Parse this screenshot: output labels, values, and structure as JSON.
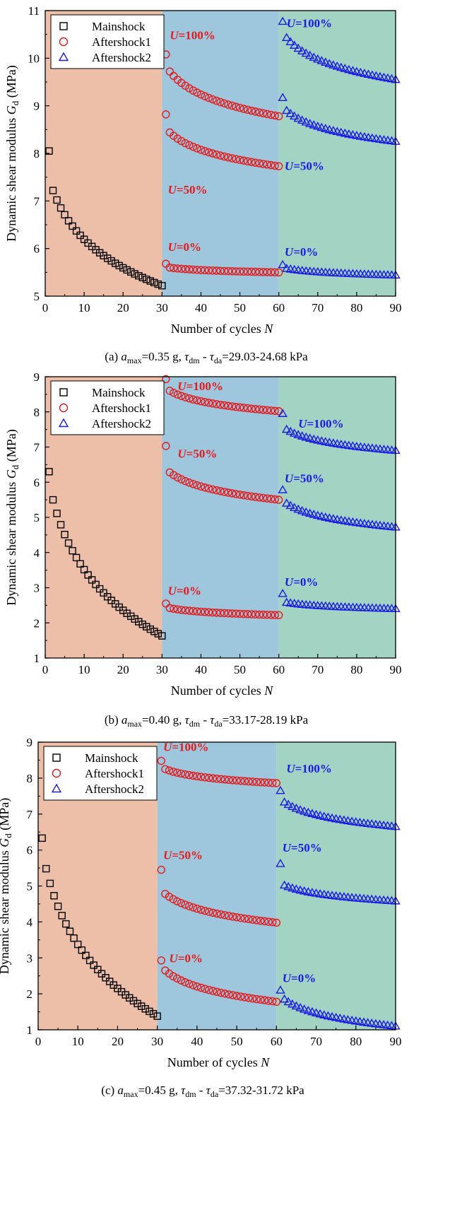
{
  "colors": {
    "mainshock_region": "#eebfa8",
    "aftershock1_region": "#9ec6dd",
    "aftershock2_region": "#a3d3c3",
    "mainshock": "#000000",
    "aftershock1": "#e41a1c",
    "aftershock2": "#1a1ae6"
  },
  "legend": {
    "mainshock": "Mainshock",
    "aftershock1": "Aftershock1",
    "aftershock2": "Aftershock2"
  },
  "chart_data": [
    {
      "type": "scatter",
      "id": "a",
      "xlabel": "Number of cycles N",
      "ylabel": "Dynamic shear modulus Gd (MPa)",
      "xlim": [
        0,
        90
      ],
      "ylim": [
        5,
        11
      ],
      "xticks": [
        0,
        10,
        20,
        30,
        40,
        50,
        60,
        70,
        80,
        90
      ],
      "yticks": [
        5,
        6,
        7,
        8,
        9,
        10,
        11
      ],
      "caption": {
        "prefix": "(a) ",
        "amax": "a",
        "amax_sub": "max",
        "value": "=0.35 g,",
        "tau": "τ",
        "dm": "dm",
        "sep": " - ",
        "da": "da",
        "rest": "=29.03-24.68 kPa"
      },
      "series": [
        {
          "name": "Mainshock",
          "phase": "main",
          "start": 1,
          "count": 30,
          "first": 8.05,
          "second": 7.22,
          "last": 5.22
        },
        {
          "name": "Aftershock1 U=100%",
          "phase": "a1",
          "start": 31,
          "count": 30,
          "first": 10.08,
          "second": 9.72,
          "last": 8.78
        },
        {
          "name": "Aftershock1 U=50%",
          "phase": "a1",
          "start": 31,
          "count": 30,
          "first": 8.82,
          "second": 8.44,
          "last": 7.73
        },
        {
          "name": "Aftershock1 U=0%",
          "phase": "a1",
          "start": 31,
          "count": 30,
          "first": 5.68,
          "second": 5.6,
          "last": 5.5
        },
        {
          "name": "Aftershock2 U=100%",
          "phase": "a2",
          "start": 61,
          "count": 30,
          "first": 10.77,
          "second": 10.43,
          "last": 9.55
        },
        {
          "name": "Aftershock2 U=50%",
          "phase": "a2",
          "start": 61,
          "count": 30,
          "first": 9.17,
          "second": 8.9,
          "last": 8.25
        },
        {
          "name": "Aftershock2 U=0%",
          "phase": "a2",
          "start": 61,
          "count": 30,
          "first": 5.66,
          "second": 5.58,
          "last": 5.44
        }
      ],
      "annotations": [
        {
          "label": "U=100%",
          "U": "U",
          "pct": "=100%",
          "phase": "a1",
          "x": 32,
          "y": 10.4
        },
        {
          "label": "U=50%",
          "U": "U",
          "pct": "=50%",
          "phase": "a1",
          "x": 31.5,
          "y": 7.15
        },
        {
          "label": "U=0%",
          "U": "U",
          "pct": "=0%",
          "phase": "a1",
          "x": 31.5,
          "y": 5.95
        },
        {
          "label": "U=100%",
          "U": "U",
          "pct": "=100%",
          "phase": "a2",
          "x": 62,
          "y": 10.65
        },
        {
          "label": "U=50%",
          "U": "U",
          "pct": "=50%",
          "phase": "a2",
          "x": 61.5,
          "y": 7.65
        },
        {
          "label": "U=0%",
          "U": "U",
          "pct": "=0%",
          "phase": "a2",
          "x": 61.5,
          "y": 5.85
        }
      ]
    },
    {
      "type": "scatter",
      "id": "b",
      "xlabel": "Number of cycles N",
      "ylabel": "Dynamic shear modulus Gd (MPa)",
      "xlim": [
        0,
        90
      ],
      "ylim": [
        1,
        9
      ],
      "xticks": [
        0,
        10,
        20,
        30,
        40,
        50,
        60,
        70,
        80,
        90
      ],
      "yticks": [
        1,
        2,
        3,
        4,
        5,
        6,
        7,
        8,
        9
      ],
      "caption": {
        "prefix": "(b) ",
        "amax": "a",
        "amax_sub": "max",
        "value": "=0.40 g,",
        "tau": "τ",
        "dm": "dm",
        "sep": " - ",
        "da": "da",
        "rest": "=33.17-28.19 kPa"
      },
      "series": [
        {
          "name": "Mainshock",
          "phase": "main",
          "start": 1,
          "count": 30,
          "first": 6.3,
          "second": 5.5,
          "last": 1.63
        },
        {
          "name": "Aftershock1 U=100%",
          "phase": "a1",
          "start": 31,
          "count": 30,
          "first": 8.93,
          "second": 8.6,
          "last": 8.02
        },
        {
          "name": "Aftershock1 U=50%",
          "phase": "a1",
          "start": 31,
          "count": 30,
          "first": 7.03,
          "second": 6.28,
          "last": 5.5
        },
        {
          "name": "Aftershock1 U=0%",
          "phase": "a1",
          "start": 31,
          "count": 30,
          "first": 2.55,
          "second": 2.42,
          "last": 2.22
        },
        {
          "name": "Aftershock2 U=100%",
          "phase": "a2",
          "start": 61,
          "count": 30,
          "first": 7.95,
          "second": 7.5,
          "last": 6.9
        },
        {
          "name": "Aftershock2 U=50%",
          "phase": "a2",
          "start": 61,
          "count": 30,
          "first": 5.78,
          "second": 5.4,
          "last": 4.72
        },
        {
          "name": "Aftershock2 U=0%",
          "phase": "a2",
          "start": 61,
          "count": 30,
          "first": 2.83,
          "second": 2.58,
          "last": 2.4
        }
      ],
      "annotations": [
        {
          "label": "U=100%",
          "U": "U",
          "pct": "=100%",
          "phase": "a1",
          "x": 34,
          "y": 8.62
        },
        {
          "label": "U=50%",
          "U": "U",
          "pct": "=50%",
          "phase": "a1",
          "x": 34,
          "y": 6.7
        },
        {
          "label": "U=0%",
          "U": "U",
          "pct": "=0%",
          "phase": "a1",
          "x": 31.5,
          "y": 2.8
        },
        {
          "label": "U=100%",
          "U": "U",
          "pct": "=100%",
          "phase": "a2",
          "x": 65,
          "y": 7.55
        },
        {
          "label": "U=50%",
          "U": "U",
          "pct": "=50%",
          "phase": "a2",
          "x": 61.5,
          "y": 6.0
        },
        {
          "label": "U=0%",
          "U": "U",
          "pct": "=0%",
          "phase": "a2",
          "x": 61.5,
          "y": 3.05
        }
      ]
    },
    {
      "type": "scatter",
      "id": "c",
      "xlabel": "Number of cycles N",
      "ylabel": "Dynamic shear modulus Gd (MPa)",
      "xlim": [
        0,
        90
      ],
      "ylim": [
        1,
        9
      ],
      "xticks": [
        0,
        10,
        20,
        30,
        40,
        50,
        60,
        70,
        80,
        90
      ],
      "yticks": [
        1,
        2,
        3,
        4,
        5,
        6,
        7,
        8,
        9
      ],
      "caption": {
        "prefix": "(c) ",
        "amax": "a",
        "amax_sub": "max",
        "value": "=0.45 g,",
        "tau": "τ",
        "dm": "dm",
        "sep": " - ",
        "da": "da",
        "rest": "=37.32-31.72 kPa"
      },
      "series": [
        {
          "name": "Mainshock",
          "phase": "main",
          "start": 1,
          "count": 30,
          "first": 6.33,
          "second": 5.48,
          "last": 1.38
        },
        {
          "name": "Aftershock1 U=100%",
          "phase": "a1",
          "start": 31,
          "count": 30,
          "first": 8.48,
          "second": 8.25,
          "last": 7.86
        },
        {
          "name": "Aftershock1 U=50%",
          "phase": "a1",
          "start": 31,
          "count": 30,
          "first": 5.45,
          "second": 4.78,
          "last": 3.98
        },
        {
          "name": "Aftershock1 U=0%",
          "phase": "a1",
          "start": 31,
          "count": 30,
          "first": 2.93,
          "second": 2.65,
          "last": 1.78
        },
        {
          "name": "Aftershock2 U=100%",
          "phase": "a2",
          "start": 61,
          "count": 30,
          "first": 7.65,
          "second": 7.33,
          "last": 6.65
        },
        {
          "name": "Aftershock2 U=50%",
          "phase": "a2",
          "start": 61,
          "count": 30,
          "first": 5.62,
          "second": 5.02,
          "last": 4.58
        },
        {
          "name": "Aftershock2 U=0%",
          "phase": "a2",
          "start": 61,
          "count": 30,
          "first": 2.1,
          "second": 1.85,
          "last": 1.1
        }
      ],
      "annotations": [
        {
          "label": "U=100%",
          "U": "U",
          "pct": "=100%",
          "phase": "a1",
          "x": 31.5,
          "y": 8.75
        },
        {
          "label": "U=50%",
          "U": "U",
          "pct": "=50%",
          "phase": "a1",
          "x": 31.5,
          "y": 5.75
        },
        {
          "label": "U=0%",
          "U": "U",
          "pct": "=0%",
          "phase": "a1",
          "x": 33,
          "y": 2.88
        },
        {
          "label": "U=100%",
          "U": "U",
          "pct": "=100%",
          "phase": "a2",
          "x": 62.5,
          "y": 8.15
        },
        {
          "label": "U=50%",
          "U": "U",
          "pct": "=50%",
          "phase": "a2",
          "x": 61.5,
          "y": 5.95
        },
        {
          "label": "U=0%",
          "U": "U",
          "pct": "=0%",
          "phase": "a2",
          "x": 61.5,
          "y": 2.33
        }
      ]
    }
  ]
}
